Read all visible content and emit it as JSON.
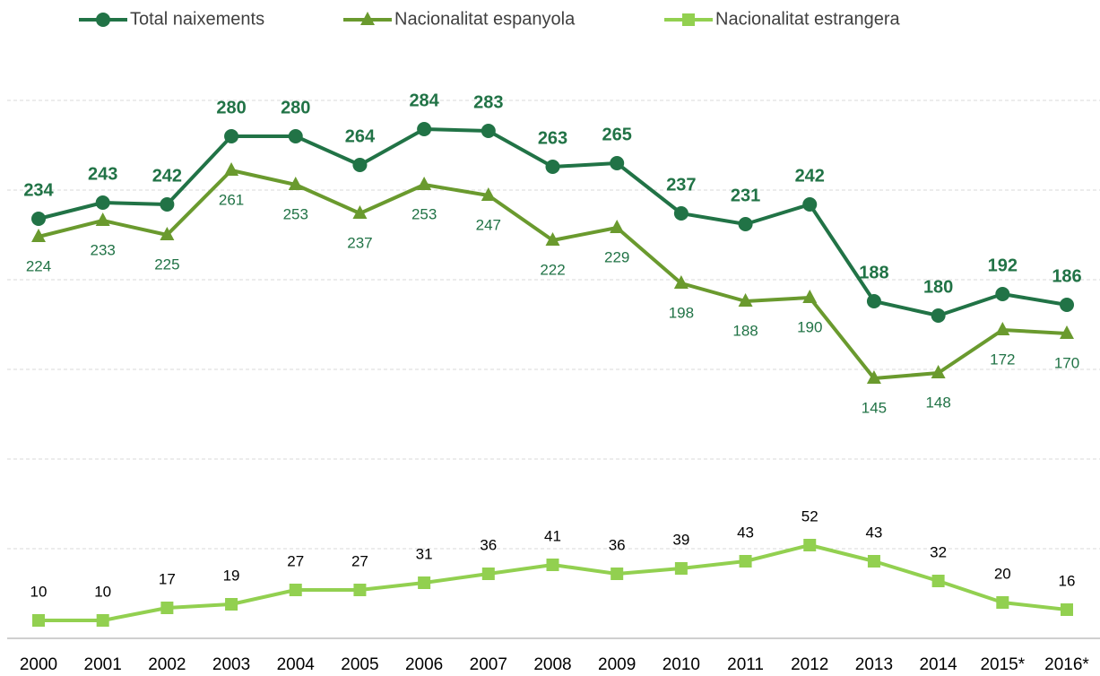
{
  "chart_data": {
    "type": "line",
    "categories": [
      "2000",
      "2001",
      "2002",
      "2003",
      "2004",
      "2005",
      "2006",
      "2007",
      "2008",
      "2009",
      "2010",
      "2011",
      "2012",
      "2013",
      "2014",
      "2015*",
      "2016*"
    ],
    "series": [
      {
        "name": "Total naixements",
        "color": "#217346",
        "marker": "circle",
        "label_position": "above",
        "label_color": "#217346",
        "label_bold": true,
        "values": [
          234,
          243,
          242,
          280,
          280,
          264,
          284,
          283,
          263,
          265,
          237,
          231,
          242,
          188,
          180,
          192,
          186
        ]
      },
      {
        "name": "Nacionalitat espanyola",
        "color": "#6a9a2e",
        "marker": "triangle",
        "label_position": "below",
        "label_color": "#217346",
        "label_bold": false,
        "values": [
          224,
          233,
          225,
          261,
          253,
          237,
          253,
          247,
          222,
          229,
          198,
          188,
          190,
          145,
          148,
          172,
          170
        ]
      },
      {
        "name": "Nacionalitat estrangera",
        "color": "#92d050",
        "marker": "square",
        "label_position": "above",
        "label_color": "#000000",
        "label_bold": false,
        "values": [
          10,
          10,
          17,
          19,
          27,
          27,
          31,
          36,
          41,
          36,
          39,
          43,
          52,
          43,
          32,
          20,
          16
        ]
      }
    ],
    "ylim": [
      0,
      300
    ],
    "yticks": [
      0,
      50,
      100,
      150,
      200,
      250,
      300
    ],
    "grid": true
  }
}
